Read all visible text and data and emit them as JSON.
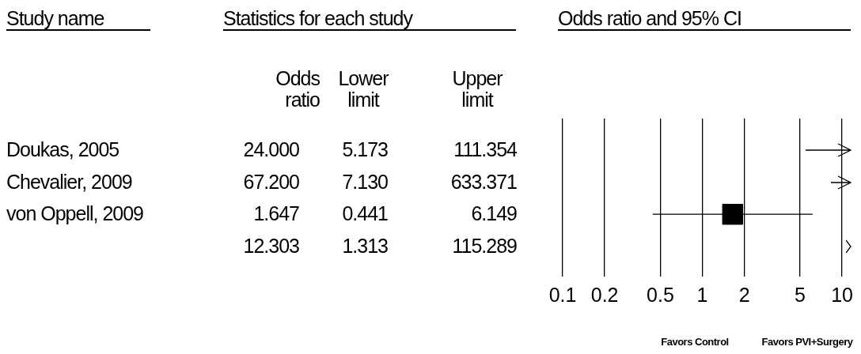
{
  "chart_data": [
    {
      "type": "other",
      "title": "Statistics for each study",
      "annotations": [
        "Study name",
        "Odds ratio",
        "Lower limit",
        "Upper limit",
        "Doukas, 2005",
        "24.000",
        "5.173",
        "111.354",
        "Chevalier, 2009",
        "67.200",
        "7.130",
        "633.371",
        "von Oppell, 2009",
        "1.647",
        "0.441",
        "6.149",
        "12.303",
        "1.313",
        "115.289"
      ]
    },
    {
      "type": "scatter",
      "orientation": "horizontal",
      "title": "Odds ratio and 95% CI",
      "categories": [
        null,
        null,
        null,
        null
      ],
      "values": [
        null,
        null,
        1.647,
        null
      ],
      "errors": [
        null,
        null,
        [
          0.441,
          6.149
        ],
        null
      ],
      "marker": "square",
      "color": "#000000",
      "log": "x",
      "xlim": [
        0.1,
        10
      ],
      "xticks": [
        0.1,
        0.2,
        0.5,
        1,
        2,
        5,
        10
      ],
      "grid": "x",
      "annotations": [
        "Favors Control",
        "Favors PVI+Surgery"
      ]
    }
  ]
}
